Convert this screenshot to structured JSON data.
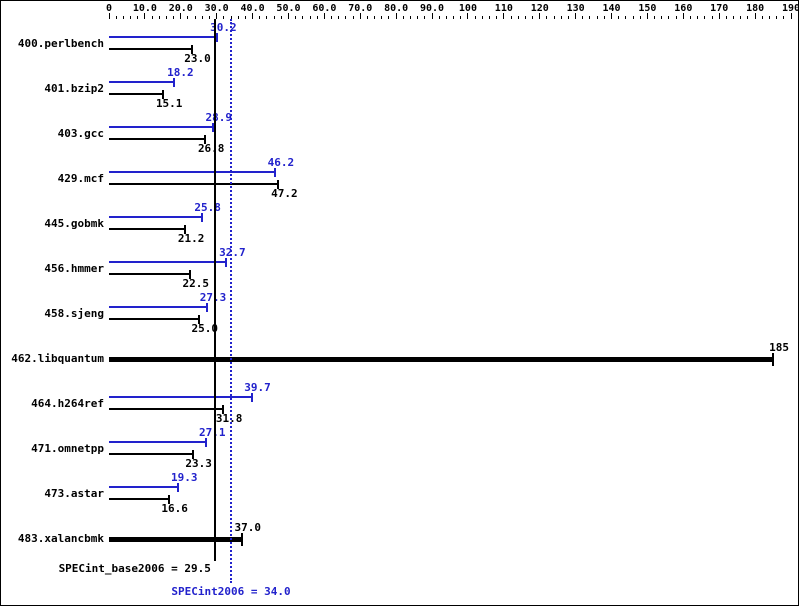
{
  "chart_data": {
    "type": "bar",
    "orientation": "horizontal",
    "title": "",
    "axis": {
      "min": 0,
      "max": 190,
      "major_tick_step": 10,
      "minor_tick_step": 2,
      "tick_labels": [
        "0",
        "10.0",
        "20.0",
        "30.0",
        "40.0",
        "50.0",
        "60.0",
        "70.0",
        "80.0",
        "90.0",
        "100",
        "110",
        "120",
        "130",
        "140",
        "150",
        "160",
        "170",
        "180",
        "190"
      ]
    },
    "benchmarks": [
      {
        "name": "400.perlbench",
        "peak": 30.2,
        "peak_label": "30.2",
        "base": 23.0,
        "base_label": "23.0"
      },
      {
        "name": "401.bzip2",
        "peak": 18.2,
        "peak_label": "18.2",
        "base": 15.1,
        "base_label": "15.1"
      },
      {
        "name": "403.gcc",
        "peak": 28.9,
        "peak_label": "28.9",
        "base": 26.8,
        "base_label": "26.8"
      },
      {
        "name": "429.mcf",
        "peak": 46.2,
        "peak_label": "46.2",
        "base": 47.2,
        "base_label": "47.2"
      },
      {
        "name": "445.gobmk",
        "peak": 25.8,
        "peak_label": "25.8",
        "base": 21.2,
        "base_label": "21.2"
      },
      {
        "name": "456.hmmer",
        "peak": 32.7,
        "peak_label": "32.7",
        "base": 22.5,
        "base_label": "22.5"
      },
      {
        "name": "458.sjeng",
        "peak": 27.3,
        "peak_label": "27.3",
        "base": 25.0,
        "base_label": "25.0"
      },
      {
        "name": "462.libquantum",
        "single": true,
        "value": 185,
        "value_label": "185"
      },
      {
        "name": "464.h264ref",
        "peak": 39.7,
        "peak_label": "39.7",
        "base": 31.8,
        "base_label": "31.8"
      },
      {
        "name": "471.omnetpp",
        "peak": 27.1,
        "peak_label": "27.1",
        "base": 23.3,
        "base_label": "23.3"
      },
      {
        "name": "473.astar",
        "peak": 19.3,
        "peak_label": "19.3",
        "base": 16.6,
        "base_label": "16.6"
      },
      {
        "name": "483.xalancbmk",
        "single": true,
        "value": 37.0,
        "value_label": "37.0"
      }
    ],
    "means": {
      "base": {
        "value": 29.5,
        "label": "SPECint_base2006 = 29.5"
      },
      "peak": {
        "value": 34.0,
        "label": "SPECint2006 = 34.0"
      }
    },
    "colors": {
      "peak": "#2222cc",
      "base": "#000000"
    },
    "legend_position": "none",
    "grid": false
  }
}
